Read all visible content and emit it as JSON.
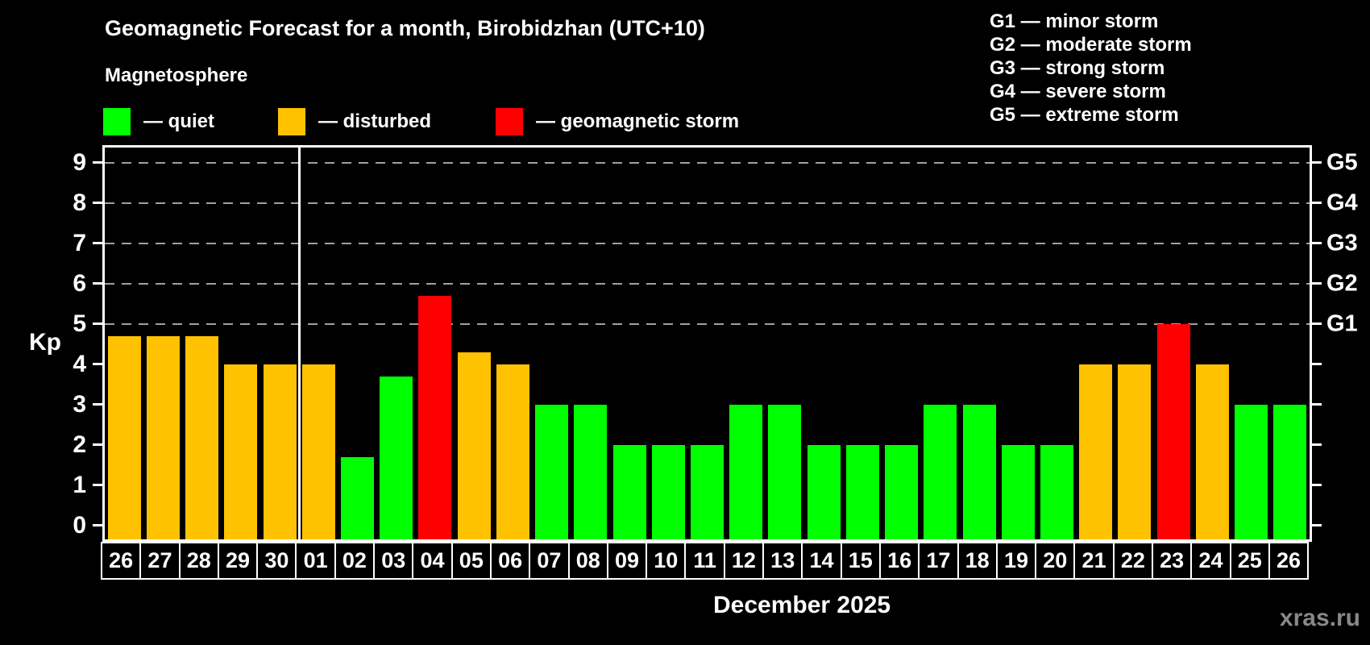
{
  "title": "Geomagnetic Forecast for a month, Birobidzhan (UTC+10)",
  "subtitle": "Magnetosphere",
  "legend": {
    "quiet_label": "— quiet",
    "disturbed_label": "— disturbed",
    "storm_label": "— geomagnetic storm"
  },
  "storm_scale": [
    {
      "label": "G1 — minor storm"
    },
    {
      "label": "G2 — moderate storm"
    },
    {
      "label": "G3 — strong storm"
    },
    {
      "label": "G4 — severe storm"
    },
    {
      "label": "G5 — extreme storm"
    }
  ],
  "colors": {
    "quiet": "#00ff00",
    "disturbed": "#ffc200",
    "storm": "#ff0000",
    "grid": "#a0a0a0",
    "axis": "#ffffff",
    "background": "#000000",
    "watermark": "#888888"
  },
  "axis": {
    "kp_label": "Kp",
    "left_tick_labels": [
      "0",
      "1",
      "2",
      "3",
      "4",
      "5",
      "6",
      "7",
      "8",
      "9"
    ],
    "right_axis_labels": [
      {
        "kp": 5,
        "label": "G1"
      },
      {
        "kp": 6,
        "label": "G2"
      },
      {
        "kp": 7,
        "label": "G3"
      },
      {
        "kp": 8,
        "label": "G4"
      },
      {
        "kp": 9,
        "label": "G5"
      }
    ],
    "month_label": "December 2025"
  },
  "watermark": "xras.ru",
  "chart_data": {
    "type": "bar",
    "title": "Geomagnetic Forecast for a month, Birobidzhan (UTC+10)",
    "xlabel": "December 2025",
    "ylabel": "Kp",
    "ylim": [
      0,
      9
    ],
    "grid": "dashed horizontal at Kp 5-9",
    "gridlines": [
      5,
      6,
      7,
      8,
      9
    ],
    "legend_position": "top",
    "month_boundary_index": 5,
    "categories": [
      "26",
      "27",
      "28",
      "29",
      "30",
      "01",
      "02",
      "03",
      "04",
      "05",
      "06",
      "07",
      "08",
      "09",
      "10",
      "11",
      "12",
      "13",
      "14",
      "15",
      "16",
      "17",
      "18",
      "19",
      "20",
      "21",
      "22",
      "23",
      "24",
      "25",
      "26"
    ],
    "values": [
      4.7,
      4.7,
      4.7,
      4.0,
      4.0,
      4.0,
      1.7,
      3.7,
      5.7,
      4.3,
      4.0,
      3.0,
      3.0,
      2.0,
      2.0,
      2.0,
      3.0,
      3.0,
      2.0,
      2.0,
      2.0,
      3.0,
      3.0,
      2.0,
      2.0,
      4.0,
      4.0,
      5.0,
      4.0,
      3.0,
      3.0
    ],
    "statuses": [
      "disturbed",
      "disturbed",
      "disturbed",
      "disturbed",
      "disturbed",
      "disturbed",
      "quiet",
      "quiet",
      "storm",
      "disturbed",
      "disturbed",
      "quiet",
      "quiet",
      "quiet",
      "quiet",
      "quiet",
      "quiet",
      "quiet",
      "quiet",
      "quiet",
      "quiet",
      "quiet",
      "quiet",
      "quiet",
      "quiet",
      "disturbed",
      "disturbed",
      "storm",
      "disturbed",
      "quiet",
      "quiet"
    ]
  }
}
